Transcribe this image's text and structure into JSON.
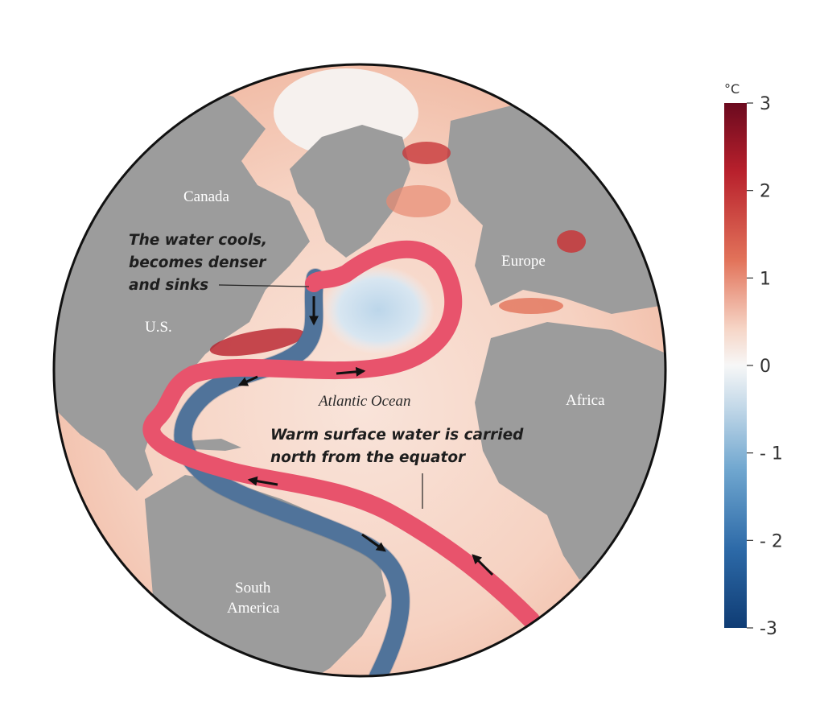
{
  "map": {
    "places": {
      "canada": "Canada",
      "us": "U.S.",
      "europe": "Europe",
      "africa": "Africa",
      "south_america_line1": "South",
      "south_america_line2": "America",
      "atlantic": "Atlantic Ocean"
    },
    "annotations": {
      "sinking": [
        "The water cools,",
        "becomes denser",
        "and sinks"
      ],
      "warm": [
        "Warm surface water is carried",
        "north from the equator"
      ]
    },
    "currents": {
      "warm_surface_color": "#e8536c",
      "cold_deep_color": "#5b7fa6",
      "land_color": "#9c9c9c"
    }
  },
  "colorbar": {
    "unit": "°C",
    "min": -3,
    "max": 3,
    "ticks": [
      "3",
      "2",
      "1",
      "0",
      "- 1",
      "- 2",
      "-3"
    ],
    "colors": [
      "#6b0a1f",
      "#b8202c",
      "#e2735a",
      "#f6d5c6",
      "#f7f7f7",
      "#c9dcea",
      "#6fa6cf",
      "#2d6aa8",
      "#0f3c74"
    ]
  }
}
